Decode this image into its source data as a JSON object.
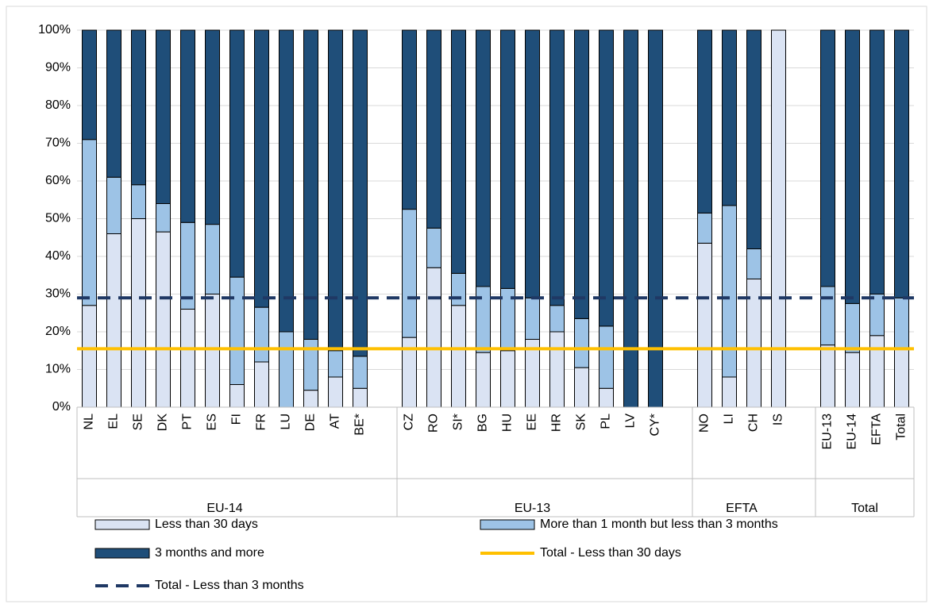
{
  "chart_data": {
    "type": "stacked-bar",
    "categories": [
      "NL",
      "EL",
      "SE",
      "DK",
      "PT",
      "ES",
      "FI",
      "FR",
      "LU",
      "DE",
      "AT",
      "BE*",
      null,
      "CZ",
      "RO",
      "SI*",
      "BG",
      "HU",
      "EE",
      "HR",
      "SK",
      "PL",
      "LV",
      "CY*",
      null,
      "NO",
      "LI",
      "CH",
      "IS",
      null,
      "EU-13",
      "EU-14",
      "EFTA",
      "Total"
    ],
    "groups": [
      "EU-14",
      "EU-13",
      "EFTA",
      "Total"
    ],
    "series": [
      {
        "name": "Less than 30 days",
        "color": "#dae3f3",
        "values": [
          27,
          46,
          50,
          46.5,
          26,
          30,
          6,
          12,
          0,
          4.5,
          8,
          5,
          null,
          18.5,
          37,
          27,
          14.5,
          15,
          18,
          20,
          10.5,
          5,
          0,
          0,
          null,
          43.5,
          8,
          34,
          100,
          null,
          16.5,
          14.5,
          19,
          15.5
        ]
      },
      {
        "name": "More than 1 month but less than 3 months",
        "color": "#9dc3e6",
        "values": [
          44,
          15,
          9,
          7.5,
          23,
          18.5,
          28.5,
          14.5,
          20,
          13.5,
          7,
          8.5,
          null,
          34,
          10.5,
          8.5,
          17.5,
          16.5,
          11,
          7,
          13,
          16.5,
          0,
          0,
          null,
          8,
          45.5,
          8,
          0,
          null,
          15.5,
          13,
          11,
          13.5
        ]
      },
      {
        "name": "3 months and more",
        "color": "#1f4e79",
        "values": [
          29,
          39,
          41,
          46,
          51,
          51.5,
          65.5,
          73.5,
          80,
          82,
          85,
          86.5,
          null,
          47.5,
          52.5,
          64.5,
          68,
          68.5,
          71,
          73,
          76.5,
          78.5,
          100,
          100,
          null,
          48.5,
          46.5,
          58,
          0,
          null,
          68,
          72.5,
          70,
          71
        ]
      }
    ],
    "reference_lines": [
      {
        "name": "Total - Less than 30 days",
        "color": "#ffc000",
        "value": 15.5,
        "dashed": false
      },
      {
        "name": "Total - Less than 3 months",
        "color": "#1f3864",
        "value": 29,
        "dashed": true
      }
    ],
    "ylim": [
      0,
      100
    ],
    "yticks": [
      {
        "value": 0,
        "label": "0%"
      },
      {
        "value": 10,
        "label": "10%"
      },
      {
        "value": 20,
        "label": "20%"
      },
      {
        "value": 30,
        "label": "30%"
      },
      {
        "value": 40,
        "label": "40%"
      },
      {
        "value": 50,
        "label": "50%"
      },
      {
        "value": 60,
        "label": "60%"
      },
      {
        "value": 70,
        "label": "70%"
      },
      {
        "value": 80,
        "label": "80%"
      },
      {
        "value": 90,
        "label": "90%"
      },
      {
        "value": 100,
        "label": "100%"
      }
    ],
    "grid": true
  }
}
